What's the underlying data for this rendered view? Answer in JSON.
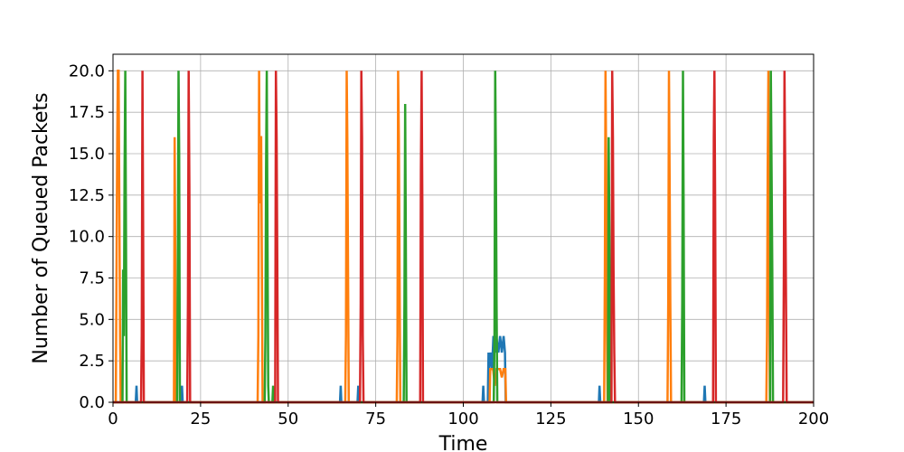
{
  "chart_data": {
    "type": "line",
    "xlabel": "Time",
    "ylabel": "Number of Queued Packets",
    "xlim": [
      0,
      200
    ],
    "ylim": [
      0,
      21
    ],
    "xticks": [
      0,
      25,
      50,
      75,
      100,
      125,
      150,
      175,
      200
    ],
    "yticks": [
      0.0,
      2.5,
      5.0,
      7.5,
      10.0,
      12.5,
      15.0,
      17.5,
      20.0
    ],
    "xtick_labels": [
      "0",
      "25",
      "50",
      "75",
      "100",
      "125",
      "150",
      "175",
      "200"
    ],
    "ytick_labels": [
      "0.0",
      "2.5",
      "5.0",
      "7.5",
      "10.0",
      "12.5",
      "15.0",
      "17.5",
      "20.0"
    ],
    "grid": true,
    "series": [
      {
        "color": "#1f77b4",
        "points": [
          [
            0,
            0
          ],
          [
            6.5,
            0
          ],
          [
            6.7,
            1
          ],
          [
            6.9,
            0
          ],
          [
            19.5,
            0
          ],
          [
            19.7,
            1
          ],
          [
            19.9,
            0
          ],
          [
            64.8,
            0
          ],
          [
            65,
            1
          ],
          [
            65.2,
            0
          ],
          [
            69.8,
            0
          ],
          [
            70,
            1
          ],
          [
            70.2,
            0
          ],
          [
            105.5,
            0
          ],
          [
            105.7,
            1
          ],
          [
            105.9,
            0
          ],
          [
            107,
            0
          ],
          [
            107.2,
            3
          ],
          [
            107.4,
            2
          ],
          [
            107.8,
            3
          ],
          [
            108.2,
            2
          ],
          [
            108.6,
            4
          ],
          [
            109,
            3
          ],
          [
            109.4,
            4
          ],
          [
            110,
            3
          ],
          [
            110.5,
            4
          ],
          [
            111,
            3
          ],
          [
            111.5,
            4
          ],
          [
            111.9,
            3
          ],
          [
            112.1,
            0
          ],
          [
            138.7,
            0
          ],
          [
            138.9,
            1
          ],
          [
            139.1,
            0
          ],
          [
            168.7,
            0
          ],
          [
            168.9,
            1
          ],
          [
            169.1,
            0
          ],
          [
            200,
            0
          ]
        ]
      },
      {
        "color": "#ff7f0e",
        "points": [
          [
            0,
            0
          ],
          [
            0.8,
            0
          ],
          [
            1,
            8
          ],
          [
            1.2,
            16
          ],
          [
            1.4,
            20
          ],
          [
            1.6,
            20
          ],
          [
            1.8,
            12
          ],
          [
            2,
            4
          ],
          [
            2.2,
            0
          ],
          [
            17.4,
            0
          ],
          [
            17.6,
            16
          ],
          [
            17.8,
            8
          ],
          [
            18,
            0
          ],
          [
            41.3,
            0
          ],
          [
            41.5,
            4
          ],
          [
            41.7,
            20
          ],
          [
            41.9,
            12
          ],
          [
            42.1,
            16
          ],
          [
            42.3,
            16
          ],
          [
            42.5,
            8
          ],
          [
            42.7,
            0
          ],
          [
            66.3,
            0
          ],
          [
            66.5,
            4
          ],
          [
            66.7,
            20
          ],
          [
            66.9,
            16
          ],
          [
            67.1,
            8
          ],
          [
            67.3,
            0
          ],
          [
            81,
            0
          ],
          [
            81.2,
            4
          ],
          [
            81.4,
            20
          ],
          [
            81.6,
            16
          ],
          [
            81.8,
            8
          ],
          [
            82,
            0
          ],
          [
            107.5,
            0
          ],
          [
            107.7,
            2
          ],
          [
            108.5,
            2
          ],
          [
            109,
            1
          ],
          [
            109.5,
            2
          ],
          [
            110.5,
            2
          ],
          [
            111,
            1.5
          ],
          [
            111.5,
            2
          ],
          [
            112,
            2
          ],
          [
            112.2,
            0
          ],
          [
            140.2,
            0
          ],
          [
            140.4,
            8
          ],
          [
            140.6,
            20
          ],
          [
            140.8,
            14
          ],
          [
            141,
            4
          ],
          [
            141.2,
            0
          ],
          [
            158.3,
            0
          ],
          [
            158.5,
            6
          ],
          [
            158.7,
            20
          ],
          [
            158.9,
            14
          ],
          [
            159.1,
            6
          ],
          [
            159.3,
            0
          ],
          [
            186.5,
            0
          ],
          [
            186.7,
            4
          ],
          [
            186.9,
            14
          ],
          [
            187.1,
            20
          ],
          [
            187.3,
            10
          ],
          [
            187.5,
            0
          ],
          [
            200,
            0
          ]
        ]
      },
      {
        "color": "#2ca02c",
        "points": [
          [
            0,
            0
          ],
          [
            2.7,
            0
          ],
          [
            2.9,
            8
          ],
          [
            3.1,
            4
          ],
          [
            3.3,
            14
          ],
          [
            3.5,
            20
          ],
          [
            3.7,
            11
          ],
          [
            3.9,
            0
          ],
          [
            18.3,
            0
          ],
          [
            18.5,
            8
          ],
          [
            18.7,
            20
          ],
          [
            18.9,
            15
          ],
          [
            19.1,
            0
          ],
          [
            43.3,
            0
          ],
          [
            43.5,
            4
          ],
          [
            43.7,
            14
          ],
          [
            43.9,
            20
          ],
          [
            44.1,
            10
          ],
          [
            44.3,
            1
          ],
          [
            44.5,
            0
          ],
          [
            45.5,
            0
          ],
          [
            45.7,
            1
          ],
          [
            45.9,
            0
          ],
          [
            83,
            0
          ],
          [
            83.2,
            6
          ],
          [
            83.4,
            18
          ],
          [
            83.6,
            10
          ],
          [
            83.8,
            0
          ],
          [
            108.7,
            0
          ],
          [
            108.9,
            4
          ],
          [
            109.1,
            20
          ],
          [
            109.3,
            15
          ],
          [
            109.5,
            6
          ],
          [
            109.7,
            0
          ],
          [
            141.3,
            0
          ],
          [
            141.5,
            16
          ],
          [
            141.7,
            10
          ],
          [
            141.9,
            0
          ],
          [
            162.3,
            0
          ],
          [
            162.5,
            6
          ],
          [
            162.7,
            20
          ],
          [
            162.9,
            12
          ],
          [
            163.1,
            0
          ],
          [
            187.6,
            0
          ],
          [
            187.8,
            20
          ],
          [
            188,
            14
          ],
          [
            188.2,
            8
          ],
          [
            188.4,
            0
          ],
          [
            200,
            0
          ]
        ]
      },
      {
        "color": "#d62728",
        "points": [
          [
            0,
            0
          ],
          [
            8,
            0
          ],
          [
            8.2,
            4
          ],
          [
            8.4,
            20
          ],
          [
            8.6,
            11
          ],
          [
            8.8,
            0
          ],
          [
            21.2,
            0
          ],
          [
            21.4,
            6
          ],
          [
            21.6,
            20
          ],
          [
            21.8,
            13
          ],
          [
            22,
            0
          ],
          [
            46.3,
            0
          ],
          [
            46.5,
            20
          ],
          [
            46.7,
            16
          ],
          [
            46.9,
            9
          ],
          [
            47.1,
            0
          ],
          [
            70.5,
            0
          ],
          [
            70.7,
            6
          ],
          [
            70.9,
            20
          ],
          [
            71.1,
            16
          ],
          [
            71.3,
            4
          ],
          [
            71.5,
            0
          ],
          [
            87.7,
            0
          ],
          [
            87.9,
            14
          ],
          [
            88.1,
            20
          ],
          [
            88.3,
            12
          ],
          [
            88.5,
            0
          ],
          [
            142.3,
            0
          ],
          [
            142.5,
            20
          ],
          [
            142.7,
            16
          ],
          [
            142.9,
            8
          ],
          [
            143.1,
            3
          ],
          [
            143.3,
            0
          ],
          [
            171.3,
            0
          ],
          [
            171.5,
            16
          ],
          [
            171.7,
            20
          ],
          [
            171.9,
            12
          ],
          [
            172.1,
            0
          ],
          [
            191.3,
            0
          ],
          [
            191.5,
            8
          ],
          [
            191.7,
            20
          ],
          [
            191.9,
            14
          ],
          [
            192.1,
            7
          ],
          [
            192.3,
            0
          ],
          [
            200,
            0
          ]
        ]
      }
    ]
  }
}
